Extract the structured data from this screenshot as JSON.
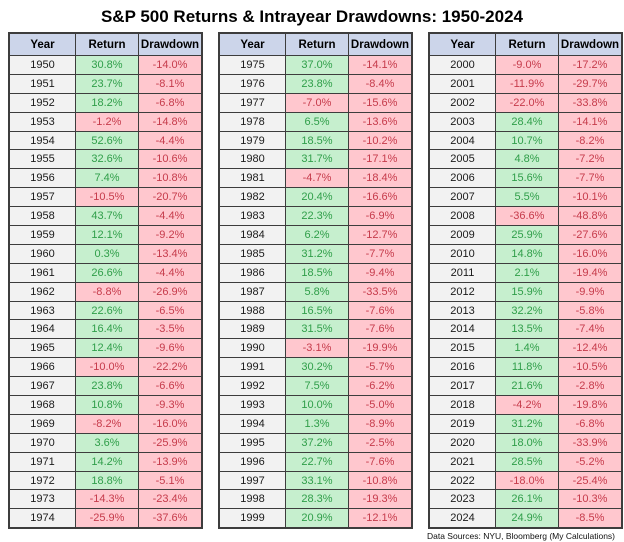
{
  "title": "S&P 500 Returns & Intrayear Drawdowns: 1950-2024",
  "footer": "Data Sources: NYU, Bloomberg (My Calculations)",
  "colors": {
    "header_bg": "#ccd5ea",
    "year_bg": "#f2f2f2",
    "positive_bg": "#c6efce",
    "positive_text": "#2f9e49",
    "negative_bg": "#ffc7ce",
    "negative_text": "#c63b4b",
    "border": "#3d3d3d"
  },
  "chart_data": {
    "type": "table",
    "title": "S&P 500 Returns & Intrayear Drawdowns: 1950-2024",
    "columns": [
      "Year",
      "Return",
      "Drawdown"
    ],
    "tables": [
      {
        "rows": [
          [
            "1950",
            "30.8%",
            "-14.0%"
          ],
          [
            "1951",
            "23.7%",
            "-8.1%"
          ],
          [
            "1952",
            "18.2%",
            "-6.8%"
          ],
          [
            "1953",
            "-1.2%",
            "-14.8%"
          ],
          [
            "1954",
            "52.6%",
            "-4.4%"
          ],
          [
            "1955",
            "32.6%",
            "-10.6%"
          ],
          [
            "1956",
            "7.4%",
            "-10.8%"
          ],
          [
            "1957",
            "-10.5%",
            "-20.7%"
          ],
          [
            "1958",
            "43.7%",
            "-4.4%"
          ],
          [
            "1959",
            "12.1%",
            "-9.2%"
          ],
          [
            "1960",
            "0.3%",
            "-13.4%"
          ],
          [
            "1961",
            "26.6%",
            "-4.4%"
          ],
          [
            "1962",
            "-8.8%",
            "-26.9%"
          ],
          [
            "1963",
            "22.6%",
            "-6.5%"
          ],
          [
            "1964",
            "16.4%",
            "-3.5%"
          ],
          [
            "1965",
            "12.4%",
            "-9.6%"
          ],
          [
            "1966",
            "-10.0%",
            "-22.2%"
          ],
          [
            "1967",
            "23.8%",
            "-6.6%"
          ],
          [
            "1968",
            "10.8%",
            "-9.3%"
          ],
          [
            "1969",
            "-8.2%",
            "-16.0%"
          ],
          [
            "1970",
            "3.6%",
            "-25.9%"
          ],
          [
            "1971",
            "14.2%",
            "-13.9%"
          ],
          [
            "1972",
            "18.8%",
            "-5.1%"
          ],
          [
            "1973",
            "-14.3%",
            "-23.4%"
          ],
          [
            "1974",
            "-25.9%",
            "-37.6%"
          ]
        ]
      },
      {
        "rows": [
          [
            "1975",
            "37.0%",
            "-14.1%"
          ],
          [
            "1976",
            "23.8%",
            "-8.4%"
          ],
          [
            "1977",
            "-7.0%",
            "-15.6%"
          ],
          [
            "1978",
            "6.5%",
            "-13.6%"
          ],
          [
            "1979",
            "18.5%",
            "-10.2%"
          ],
          [
            "1980",
            "31.7%",
            "-17.1%"
          ],
          [
            "1981",
            "-4.7%",
            "-18.4%"
          ],
          [
            "1982",
            "20.4%",
            "-16.6%"
          ],
          [
            "1983",
            "22.3%",
            "-6.9%"
          ],
          [
            "1984",
            "6.2%",
            "-12.7%"
          ],
          [
            "1985",
            "31.2%",
            "-7.7%"
          ],
          [
            "1986",
            "18.5%",
            "-9.4%"
          ],
          [
            "1987",
            "5.8%",
            "-33.5%"
          ],
          [
            "1988",
            "16.5%",
            "-7.6%"
          ],
          [
            "1989",
            "31.5%",
            "-7.6%"
          ],
          [
            "1990",
            "-3.1%",
            "-19.9%"
          ],
          [
            "1991",
            "30.2%",
            "-5.7%"
          ],
          [
            "1992",
            "7.5%",
            "-6.2%"
          ],
          [
            "1993",
            "10.0%",
            "-5.0%"
          ],
          [
            "1994",
            "1.3%",
            "-8.9%"
          ],
          [
            "1995",
            "37.2%",
            "-2.5%"
          ],
          [
            "1996",
            "22.7%",
            "-7.6%"
          ],
          [
            "1997",
            "33.1%",
            "-10.8%"
          ],
          [
            "1998",
            "28.3%",
            "-19.3%"
          ],
          [
            "1999",
            "20.9%",
            "-12.1%"
          ]
        ]
      },
      {
        "rows": [
          [
            "2000",
            "-9.0%",
            "-17.2%"
          ],
          [
            "2001",
            "-11.9%",
            "-29.7%"
          ],
          [
            "2002",
            "-22.0%",
            "-33.8%"
          ],
          [
            "2003",
            "28.4%",
            "-14.1%"
          ],
          [
            "2004",
            "10.7%",
            "-8.2%"
          ],
          [
            "2005",
            "4.8%",
            "-7.2%"
          ],
          [
            "2006",
            "15.6%",
            "-7.7%"
          ],
          [
            "2007",
            "5.5%",
            "-10.1%"
          ],
          [
            "2008",
            "-36.6%",
            "-48.8%"
          ],
          [
            "2009",
            "25.9%",
            "-27.6%"
          ],
          [
            "2010",
            "14.8%",
            "-16.0%"
          ],
          [
            "2011",
            "2.1%",
            "-19.4%"
          ],
          [
            "2012",
            "15.9%",
            "-9.9%"
          ],
          [
            "2013",
            "32.2%",
            "-5.8%"
          ],
          [
            "2014",
            "13.5%",
            "-7.4%"
          ],
          [
            "2015",
            "1.4%",
            "-12.4%"
          ],
          [
            "2016",
            "11.8%",
            "-10.5%"
          ],
          [
            "2017",
            "21.6%",
            "-2.8%"
          ],
          [
            "2018",
            "-4.2%",
            "-19.8%"
          ],
          [
            "2019",
            "31.2%",
            "-6.8%"
          ],
          [
            "2020",
            "18.0%",
            "-33.9%"
          ],
          [
            "2021",
            "28.5%",
            "-5.2%"
          ],
          [
            "2022",
            "-18.0%",
            "-25.4%"
          ],
          [
            "2023",
            "26.1%",
            "-10.3%"
          ],
          [
            "2024",
            "24.9%",
            "-8.5%"
          ]
        ]
      }
    ]
  }
}
